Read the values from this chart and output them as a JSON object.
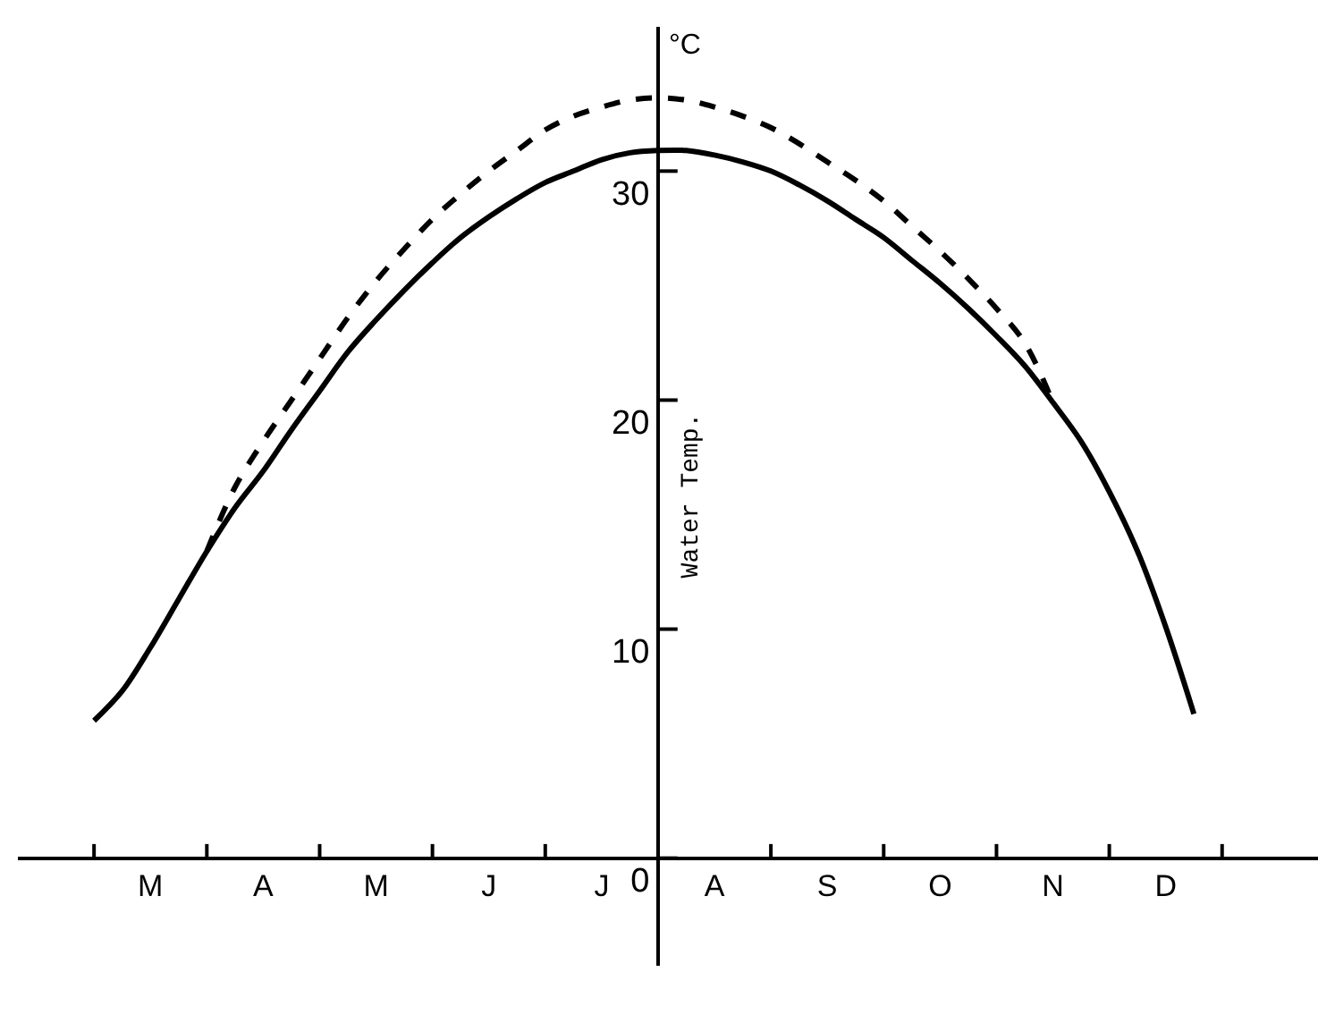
{
  "chart_data": {
    "type": "line",
    "ylabel": "Water Temp.",
    "annotations": [
      "°C"
    ],
    "categories": [
      null,
      null,
      "M",
      null,
      null,
      null,
      "A",
      null,
      null,
      null,
      "M",
      null,
      null,
      null,
      "J",
      null,
      null,
      null,
      "J",
      null,
      null,
      null,
      "A",
      null,
      null,
      null,
      "S",
      null,
      null,
      null,
      "O",
      null,
      null,
      null,
      "N",
      null,
      null,
      null,
      "D",
      null,
      null
    ],
    "ylim": [
      -4.7,
      36.3
    ],
    "yticks": [
      0,
      10,
      20,
      30
    ],
    "legend": false,
    "marker": "none",
    "series": [
      {
        "color": "#000000",
        "line_style": "solid",
        "values": [
          6.0,
          7.3,
          9.2,
          11.3,
          13.4,
          15.3,
          16.9,
          18.7,
          20.4,
          22.1,
          23.5,
          24.8,
          26.0,
          27.1,
          28.0,
          28.8,
          29.5,
          30.0,
          30.5,
          30.8,
          30.9,
          30.9,
          30.7,
          30.4,
          30.0,
          29.4,
          28.7,
          27.9,
          27.1,
          26.1,
          25.1,
          24.0,
          22.8,
          21.5,
          19.9,
          18.2,
          16.0,
          13.4,
          10.1,
          6.3,
          null
        ]
      },
      {
        "color": "#000000",
        "line_style": "dashed",
        "values": [
          null,
          null,
          null,
          null,
          13.4,
          16.2,
          18.2,
          20.0,
          21.8,
          23.6,
          25.2,
          26.6,
          27.9,
          29.0,
          30.0,
          30.9,
          31.8,
          32.4,
          32.8,
          33.1,
          33.2,
          33.1,
          32.8,
          32.4,
          31.9,
          31.2,
          30.4,
          29.6,
          28.7,
          27.6,
          26.5,
          25.3,
          24.0,
          22.5,
          19.9,
          null,
          null,
          null,
          null,
          null,
          null
        ]
      }
    ]
  }
}
